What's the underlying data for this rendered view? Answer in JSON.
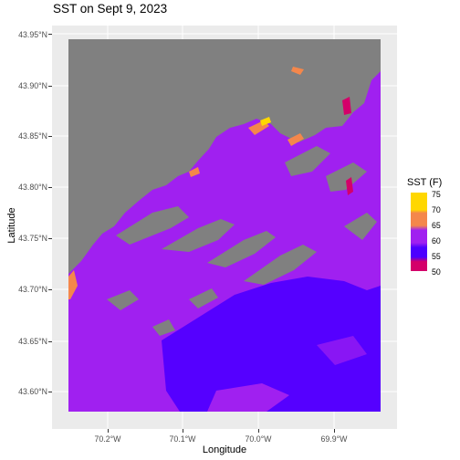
{
  "title": "SST on Sept 9, 2023",
  "x_axis": {
    "label": "Longitude",
    "ticks": [
      {
        "label": "70.2°W",
        "value": -70.2
      },
      {
        "label": "70.1°W",
        "value": -70.1
      },
      {
        "label": "70.0°W",
        "value": -70.0
      },
      {
        "label": "69.9°W",
        "value": -69.9
      }
    ],
    "range": [
      -70.261,
      -69.836
    ]
  },
  "y_axis": {
    "label": "Latitude",
    "ticks": [
      {
        "label": "43.95°N",
        "value": 43.95
      },
      {
        "label": "43.90°N",
        "value": 43.9
      },
      {
        "label": "43.85°N",
        "value": 43.85
      },
      {
        "label": "43.80°N",
        "value": 43.8
      },
      {
        "label": "43.75°N",
        "value": 43.75
      },
      {
        "label": "43.70°N",
        "value": 43.7
      },
      {
        "label": "43.65°N",
        "value": 43.65
      },
      {
        "label": "43.60°N",
        "value": 43.6
      }
    ],
    "range": [
      43.571,
      43.958
    ]
  },
  "legend": {
    "title": "SST (F)",
    "labels": [
      "75",
      "70",
      "65",
      "60",
      "55",
      "50"
    ],
    "colors": [
      "#FFD700",
      "#F4874B",
      "#A020F0",
      "#A020F0",
      "#4B00FF",
      "#D4006A"
    ]
  },
  "colors": {
    "panel_bg": "#ebebeb",
    "grid": "#ffffff",
    "land": "#808080",
    "warm_water": "#A020F0",
    "cool_water": "#5500FF",
    "hot_water": "#F4874B",
    "hottest_water": "#FFD700",
    "coldest_water": "#D4006A"
  }
}
